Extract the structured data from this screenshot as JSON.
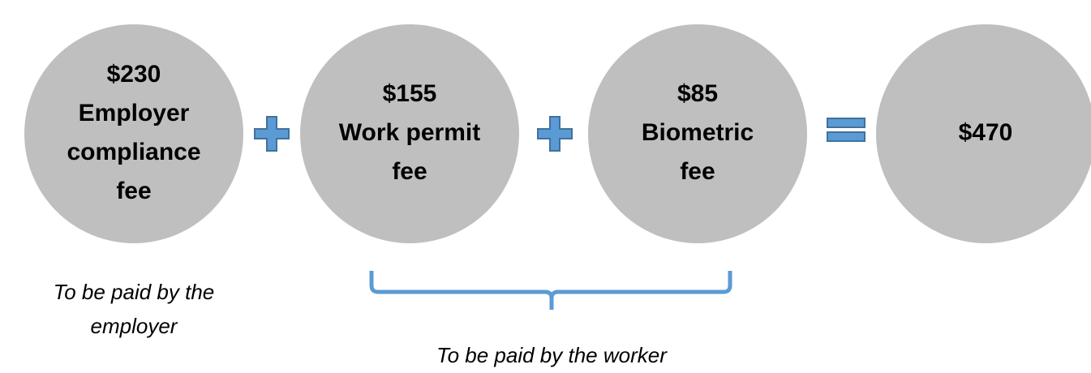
{
  "circles": [
    {
      "lines": [
        "$230",
        "Employer",
        "compliance",
        "fee"
      ]
    },
    {
      "lines": [
        "$155",
        "Work permit",
        "fee"
      ]
    },
    {
      "lines": [
        "$85",
        "Biometric",
        "fee"
      ]
    },
    {
      "lines": [
        "$470"
      ]
    }
  ],
  "employer_note": {
    "lines": [
      "To be paid by the",
      "employer"
    ]
  },
  "worker_note": "To be paid by the worker"
}
